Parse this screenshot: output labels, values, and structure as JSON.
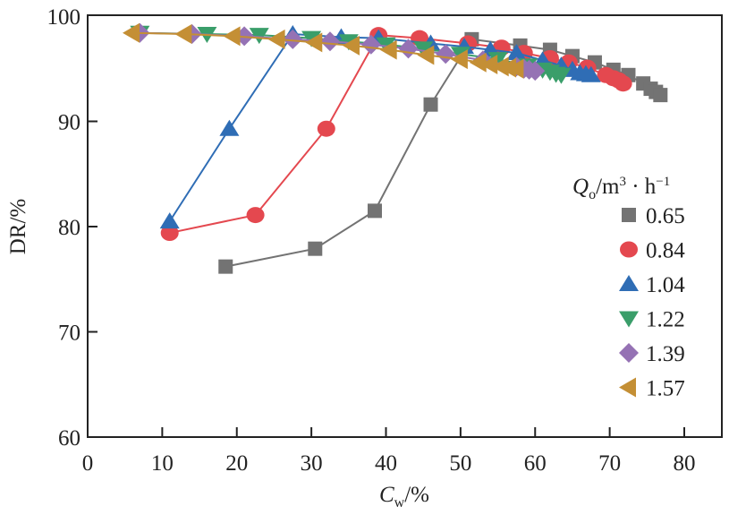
{
  "chart_data": {
    "type": "line",
    "title": "",
    "xlabel": {
      "main": "C",
      "sub": "w",
      "suffix": "/%"
    },
    "ylabel": "DR/%",
    "xlim": [
      0,
      85
    ],
    "ylim": [
      60,
      100
    ],
    "xticks": [
      0,
      10,
      20,
      30,
      40,
      50,
      60,
      70,
      80
    ],
    "yticks": [
      60,
      70,
      80,
      90,
      100
    ],
    "xtick_labels": [
      "0",
      "10",
      "20",
      "30",
      "40",
      "50",
      "60",
      "70",
      "80"
    ],
    "ytick_labels": [
      "60",
      "70",
      "80",
      "90",
      "100"
    ],
    "grid": false,
    "legend": {
      "placement": "right",
      "title": {
        "main": "Q",
        "sub": "o",
        "unit": "/m",
        "sup": "3",
        "mid": " · h",
        "sup2": "−1"
      }
    },
    "series": [
      {
        "name": "0.65",
        "color": "#737373",
        "marker": "square",
        "x": [
          18.5,
          30.5,
          38.5,
          46,
          51.5,
          58,
          62,
          65,
          68,
          70.5,
          72.5,
          74.5,
          75.5,
          76.2,
          76.8
        ],
        "y": [
          76.2,
          77.9,
          81.5,
          91.6,
          97.8,
          97.2,
          96.8,
          96.2,
          95.6,
          94.9,
          94.4,
          93.6,
          93.1,
          92.8,
          92.5
        ]
      },
      {
        "name": "0.84",
        "color": "#e4484f",
        "marker": "circle",
        "x": [
          11,
          22.5,
          32,
          39,
          44.5,
          51,
          55.5,
          58.5,
          62,
          64.5,
          67,
          69.5,
          70.5,
          71.2,
          71.8
        ],
        "y": [
          79.4,
          81.1,
          89.3,
          98.2,
          97.9,
          97.4,
          97.0,
          96.5,
          96.0,
          95.6,
          95.1,
          94.4,
          94.1,
          93.9,
          93.6
        ]
      },
      {
        "name": "1.04",
        "color": "#2f6db5",
        "marker": "triangle-up",
        "x": [
          11,
          19,
          27.5,
          34,
          39,
          46,
          50.5,
          54,
          57.5,
          61,
          63.5,
          65,
          66,
          66.8,
          67.5
        ],
        "y": [
          80.5,
          89.3,
          98.3,
          98.0,
          97.9,
          97.4,
          97.1,
          96.8,
          96.5,
          95.8,
          95.3,
          94.9,
          94.6,
          94.5,
          94.4
        ]
      },
      {
        "name": "1.22",
        "color": "#3a9e6a",
        "marker": "triangle-down",
        "x": [
          7,
          16,
          23,
          30,
          35,
          40,
          45,
          50,
          55,
          59,
          61,
          62,
          62.8,
          63.5
        ],
        "y": [
          98.4,
          98.3,
          98.2,
          97.9,
          97.6,
          97.3,
          96.9,
          96.4,
          95.9,
          95.3,
          94.9,
          94.7,
          94.5,
          94.4
        ]
      },
      {
        "name": "1.39",
        "color": "#9572b4",
        "marker": "diamond",
        "x": [
          7,
          14,
          21,
          27.5,
          32.5,
          38,
          43,
          48,
          53,
          57.5,
          58.5,
          59.2,
          60
        ],
        "y": [
          98.4,
          98.3,
          98.1,
          97.8,
          97.6,
          97.3,
          96.9,
          96.4,
          95.8,
          95.2,
          95.0,
          94.9,
          94.8
        ]
      },
      {
        "name": "1.57",
        "color": "#c48f35",
        "marker": "triangle-left",
        "x": [
          6,
          13,
          19.5,
          25.5,
          30.5,
          35.5,
          40.5,
          45.5,
          50,
          52.5,
          54,
          55.5,
          56.5,
          57.5
        ],
        "y": [
          98.4,
          98.3,
          98.1,
          97.8,
          97.5,
          97.2,
          96.8,
          96.3,
          95.9,
          95.6,
          95.4,
          95.2,
          95.1,
          95.0
        ]
      }
    ]
  }
}
